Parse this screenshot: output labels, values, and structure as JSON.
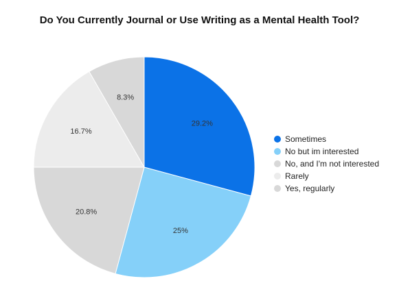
{
  "chart_data": {
    "type": "pie",
    "title": "Do You Currently Journal or Use Writing as a Mental Health Tool?",
    "slices": [
      {
        "name": "Sometimes",
        "value": 29.2,
        "label": "29.2%",
        "color": "#0b72e7"
      },
      {
        "name": "No but im interested",
        "value": 25,
        "label": "25%",
        "color": "#85d0f9"
      },
      {
        "name": "No, and I'm not interested",
        "value": 20.8,
        "label": "20.8%",
        "color": "#d8d8d8"
      },
      {
        "name": "Rarely",
        "value": 16.7,
        "label": "16.7%",
        "color": "#ececec"
      },
      {
        "name": "Yes, regularly",
        "value": 8.3,
        "label": "8.3%",
        "color": "#d8d8d8"
      }
    ],
    "legend_position": "right"
  }
}
